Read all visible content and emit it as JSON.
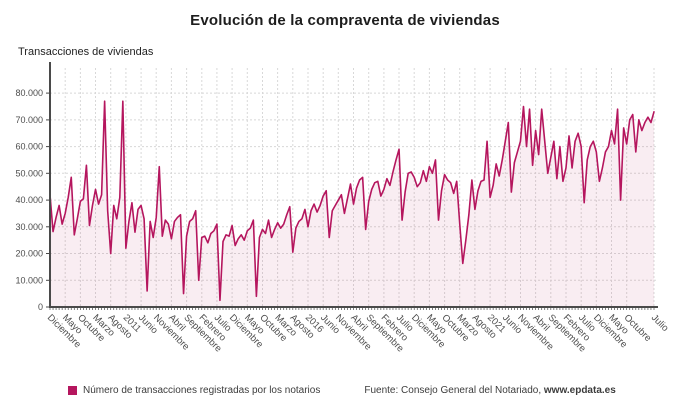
{
  "title": "Evolución de la compraventa de viviendas",
  "y_axis_title": "Transacciones de viviendas",
  "legend": {
    "label": "Número de transacciones registradas por los notarios",
    "swatch_color": "#b5165e"
  },
  "source": {
    "prefix": "Fuente: Consejo General del Notariado, ",
    "link": "www.epdata.es"
  },
  "chart_data": {
    "type": "area",
    "series_name": "Número de transacciones registradas por los notarios",
    "start_month": "2008-12",
    "frequency": "monthly",
    "unit": "transacciones de viviendas",
    "values": [
      42000,
      28200,
      33500,
      38000,
      31000,
      35000,
      41000,
      48500,
      27000,
      33000,
      39500,
      40500,
      53000,
      30500,
      38000,
      44000,
      38500,
      42000,
      77000,
      36000,
      20000,
      38000,
      33000,
      41000,
      77000,
      22000,
      32000,
      39000,
      28000,
      36500,
      38000,
      33000,
      6000,
      32000,
      26000,
      33500,
      52500,
      26500,
      32500,
      31000,
      25500,
      32000,
      33500,
      34500,
      5000,
      26500,
      32000,
      33000,
      36000,
      10000,
      26000,
      26500,
      24000,
      27500,
      28500,
      31000,
      2500,
      24500,
      27000,
      26500,
      30500,
      23000,
      25500,
      27000,
      25000,
      28500,
      29500,
      32500,
      4000,
      26000,
      29000,
      27500,
      32500,
      26000,
      29000,
      31500,
      29500,
      31000,
      34500,
      37500,
      20500,
      29500,
      32000,
      33000,
      36500,
      30000,
      36000,
      38500,
      35500,
      38000,
      41500,
      43500,
      26000,
      36000,
      38000,
      40000,
      42000,
      35000,
      40500,
      46000,
      38500,
      44500,
      47500,
      48500,
      29000,
      39500,
      44000,
      46500,
      47000,
      41500,
      44000,
      48000,
      45500,
      50500,
      55000,
      59000,
      32500,
      43000,
      50000,
      50500,
      48500,
      45000,
      46500,
      51000,
      47000,
      52500,
      50000,
      55000,
      32500,
      43500,
      49500,
      47500,
      46500,
      42500,
      47000,
      31000,
      16300,
      25000,
      34500,
      47500,
      36500,
      43500,
      47000,
      47500,
      62000,
      41000,
      45500,
      53500,
      49000,
      55000,
      62000,
      69000,
      43000,
      54000,
      58000,
      62000,
      75000,
      60000,
      74000,
      53000,
      66000,
      57000,
      74000,
      62000,
      50000,
      56000,
      62000,
      48000,
      60000,
      47000,
      52000,
      64000,
      52000,
      62000,
      65000,
      60000,
      39000,
      55000,
      60000,
      62000,
      58000,
      47000,
      52000,
      58000,
      60000,
      66000,
      61000,
      74000,
      40000,
      67000,
      61000,
      70000,
      72000,
      58000,
      70000,
      66000,
      69000,
      71000,
      69000,
      73000
    ],
    "x_tick_positions": [
      0,
      5,
      10,
      15,
      20,
      25,
      30,
      35,
      40,
      45,
      50,
      55,
      60,
      65,
      70,
      75,
      80,
      85,
      90,
      95,
      100,
      105,
      110,
      115,
      120,
      125,
      130,
      135,
      140,
      145,
      150,
      155,
      160,
      165,
      170,
      175,
      180,
      185,
      190,
      199
    ],
    "x_tick_labels": [
      "Diciembre",
      "Mayo",
      "Octubre",
      "Marzo",
      "Agosto",
      "2011",
      "Junio",
      "Noviembre",
      "Abril",
      "Septiembre",
      "Febrero",
      "Julio",
      "Diciembre",
      "Mayo",
      "Octubre",
      "Marzo",
      "Agosto",
      "2016",
      "Junio",
      "Noviembre",
      "Abril",
      "Septiembre",
      "Febrero",
      "Julio",
      "Diciembre",
      "Mayo",
      "Octubre",
      "Marzo",
      "Agosto",
      "2021",
      "Junio",
      "Noviembre",
      "Abril",
      "Septiembre",
      "Febrero",
      "Julio",
      "Diciembre",
      "Mayo",
      "Octubre",
      "Julio"
    ],
    "y_ticks": [
      0,
      10000,
      20000,
      30000,
      40000,
      50000,
      60000,
      70000,
      80000
    ],
    "y_tick_labels": [
      "0",
      "10.000",
      "20.000",
      "30.000",
      "40.000",
      "50.000",
      "60.000",
      "70.000",
      "80.000"
    ],
    "ylim": [
      0,
      89400
    ],
    "grid": true,
    "legend_position": "bottom-left",
    "line_color": "#b5165e",
    "fill_color": "rgba(181,22,94,0.08)",
    "axis_color": "#4a4a4a",
    "grid_color": "#d8d8d8",
    "tick_label_color": "#4d4d4d"
  }
}
